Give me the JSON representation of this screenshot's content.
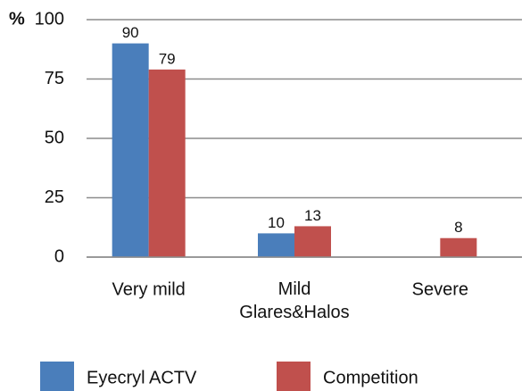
{
  "chart_data": {
    "type": "bar",
    "y_label": "%",
    "categories": [
      "Very mild",
      "Mild\nGlares&Halos",
      "Severe"
    ],
    "series": [
      {
        "name": "Eyecryl ACTV",
        "color": "#4a7ebb",
        "values": [
          90,
          10,
          null
        ]
      },
      {
        "name": "Competition",
        "color": "#c0504d",
        "values": [
          79,
          13,
          8
        ]
      }
    ],
    "ylim": [
      0,
      100
    ],
    "yticks": [
      0,
      25,
      50,
      75,
      100
    ],
    "grid": true,
    "legend": "bottom"
  }
}
